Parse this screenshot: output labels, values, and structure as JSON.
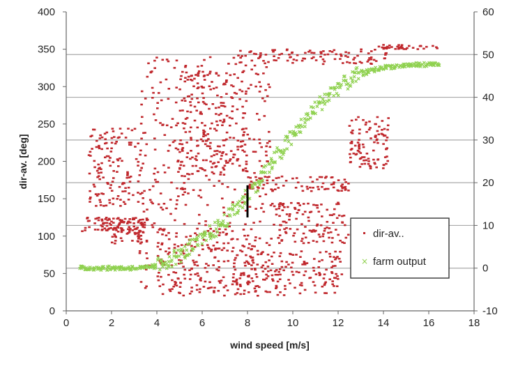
{
  "chart_data": {
    "type": "scatter",
    "xlabel": "wind speed [m/s]",
    "ylabel": "dir-av. [deg]",
    "xlim": [
      0,
      18
    ],
    "ylim": [
      0,
      400
    ],
    "y2lim": [
      -10,
      60
    ],
    "xticks": [
      "0",
      "2",
      "4",
      "6",
      "8",
      "10",
      "12",
      "14",
      "16",
      "18"
    ],
    "yticks": [
      "0",
      "50",
      "100",
      "150",
      "200",
      "250",
      "300",
      "350",
      "400"
    ],
    "y2ticks": [
      "-10",
      "0",
      "10",
      "20",
      "30",
      "40",
      "50",
      "60"
    ],
    "grid": "horizontal lines at right-axis ticks",
    "legend_position": "lower-right",
    "series": [
      {
        "name": "dir-av..",
        "marker": "dot",
        "color": "#c0282d",
        "axis": "left",
        "clusters": [
          {
            "x": [
              0.7,
              3.5
            ],
            "y": [
              105,
              125
            ]
          },
          {
            "x": [
              1.0,
              3.5
            ],
            "y": [
              140,
              245
            ]
          },
          {
            "x": [
              1.8,
              3.6
            ],
            "y": [
              90,
              125
            ]
          },
          {
            "x": [
              3.2,
              9.0
            ],
            "y": [
              25,
              340
            ]
          },
          {
            "x": [
              4.0,
              8.5
            ],
            "y": [
              20,
              110
            ]
          },
          {
            "x": [
              5.0,
              8.0
            ],
            "y": [
              180,
              320
            ]
          },
          {
            "x": [
              8.0,
              12.2
            ],
            "y": [
              20,
              80
            ]
          },
          {
            "x": [
              8.0,
              12.5
            ],
            "y": [
              160,
              180
            ]
          },
          {
            "x": [
              9.0,
              12.5
            ],
            "y": [
              90,
              145
            ]
          },
          {
            "x": [
              7.5,
              14.2
            ],
            "y": [
              330,
              350
            ]
          },
          {
            "x": [
              13.8,
              16.6
            ],
            "y": [
              350,
              356
            ]
          },
          {
            "x": [
              12.5,
              14.3
            ],
            "y": [
              190,
              260
            ]
          }
        ]
      },
      {
        "name": "farm output",
        "marker": "x",
        "color": "#8fd14f",
        "axis": "right",
        "curve": [
          {
            "x": 0.6,
            "y": 0
          },
          {
            "x": 3.0,
            "y": 0
          },
          {
            "x": 3.5,
            "y": 0
          },
          {
            "x": 4.0,
            "y": 0.5
          },
          {
            "x": 5.0,
            "y": 3
          },
          {
            "x": 6.0,
            "y": 6.5
          },
          {
            "x": 7.0,
            "y": 11
          },
          {
            "x": 8.0,
            "y": 17
          },
          {
            "x": 9.0,
            "y": 24
          },
          {
            "x": 10.0,
            "y": 31
          },
          {
            "x": 11.0,
            "y": 37.5
          },
          {
            "x": 12.0,
            "y": 42.5
          },
          {
            "x": 13.0,
            "y": 45.5
          },
          {
            "x": 14.0,
            "y": 47
          },
          {
            "x": 15.0,
            "y": 47.5
          },
          {
            "x": 16.5,
            "y": 47.8
          }
        ]
      }
    ],
    "annotation": {
      "type": "vertical-bar",
      "x": 8.0,
      "y_range": [
        125,
        168
      ]
    }
  }
}
